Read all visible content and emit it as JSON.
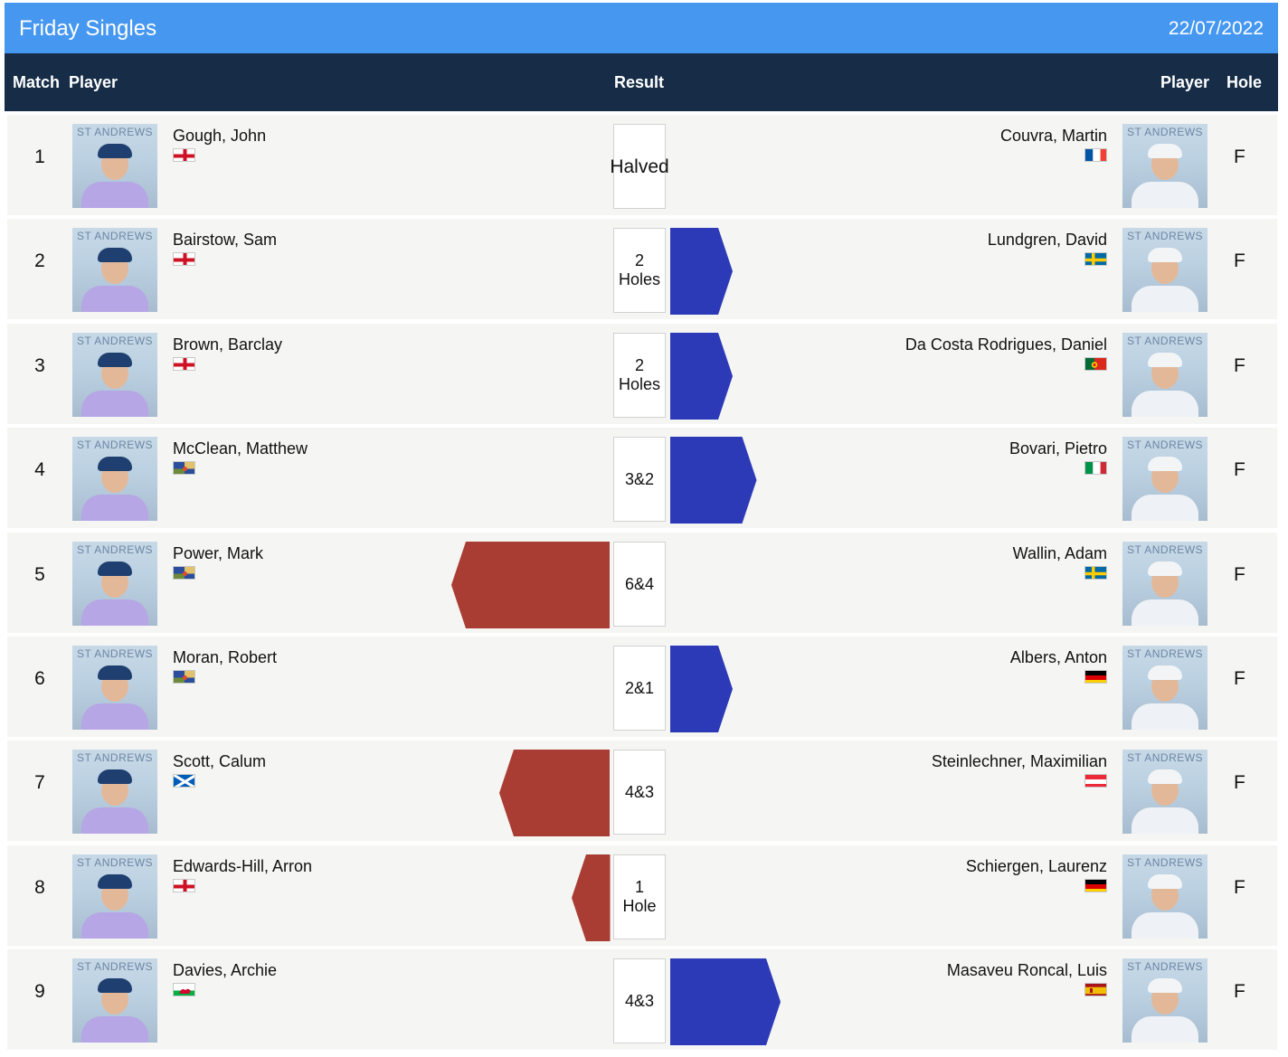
{
  "title": "Friday Singles",
  "date": "22/07/2022",
  "headers": {
    "match": "Match",
    "player_left": "Player",
    "result": "Result",
    "player_right": "Player",
    "hole": "Hole"
  },
  "photo_caption": "ST ANDREWS",
  "colors": {
    "left_team": "#a93d33",
    "right_team": "#2c3ab7",
    "header_bg": "#162c47",
    "title_bg": "#4597f0"
  },
  "matches": [
    {
      "match": "1",
      "left_player": "Gough, John",
      "left_flag": "england",
      "result": "Halved",
      "winner": "none",
      "margin_holes": 0,
      "right_player": "Couvra, Martin",
      "right_flag": "france",
      "hole": "F"
    },
    {
      "match": "2",
      "left_player": "Bairstow, Sam",
      "left_flag": "england",
      "result": "2 Holes",
      "winner": "right",
      "margin_holes": 2,
      "right_player": "Lundgren, David",
      "right_flag": "sweden",
      "hole": "F"
    },
    {
      "match": "3",
      "left_player": "Brown, Barclay",
      "left_flag": "england",
      "result": "2 Holes",
      "winner": "right",
      "margin_holes": 2,
      "right_player": "Da Costa Rodrigues, Daniel",
      "right_flag": "portugal",
      "hole": "F"
    },
    {
      "match": "4",
      "left_player": "McClean, Matthew",
      "left_flag": "ireland",
      "result": "3&2",
      "winner": "right",
      "margin_holes": 3,
      "right_player": "Bovari, Pietro",
      "right_flag": "italy",
      "hole": "F"
    },
    {
      "match": "5",
      "left_player": "Power, Mark",
      "left_flag": "ireland",
      "result": "6&4",
      "winner": "left",
      "margin_holes": 6,
      "right_player": "Wallin, Adam",
      "right_flag": "sweden",
      "hole": "F"
    },
    {
      "match": "6",
      "left_player": "Moran, Robert",
      "left_flag": "ireland",
      "result": "2&1",
      "winner": "right",
      "margin_holes": 2,
      "right_player": "Albers, Anton",
      "right_flag": "germany",
      "hole": "F"
    },
    {
      "match": "7",
      "left_player": "Scott, Calum",
      "left_flag": "scotland",
      "result": "4&3",
      "winner": "left",
      "margin_holes": 4,
      "right_player": "Steinlechner, Maximilian",
      "right_flag": "austria",
      "hole": "F"
    },
    {
      "match": "8",
      "left_player": "Edwards-Hill, Arron",
      "left_flag": "england",
      "result": "1 Hole",
      "winner": "left",
      "margin_holes": 1,
      "right_player": "Schiergen, Laurenz",
      "right_flag": "germany",
      "hole": "F"
    },
    {
      "match": "9",
      "left_player": "Davies, Archie",
      "left_flag": "wales",
      "result": "4&3",
      "winner": "right",
      "margin_holes": 4,
      "right_player": "Masaveu Roncal, Luis",
      "right_flag": "spain",
      "hole": "F"
    }
  ]
}
